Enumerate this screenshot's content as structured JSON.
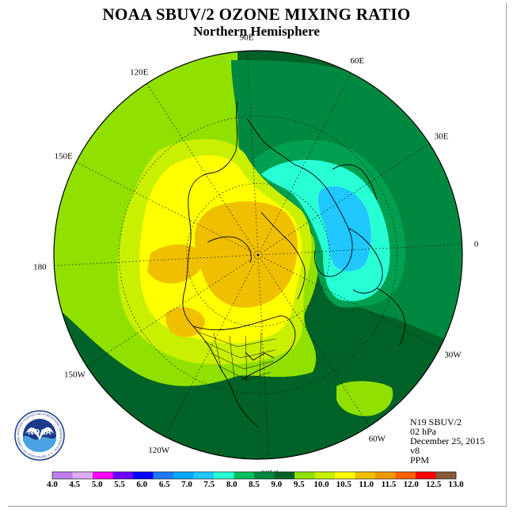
{
  "header": {
    "title": "NOAA SBUV/2 OZONE MIXING RATIO",
    "subtitle": "Northern Hemisphere"
  },
  "longitude_labels": [
    "90E",
    "60E",
    "30E",
    "0",
    "30W",
    "60W",
    "90W",
    "120W",
    "150W",
    "180",
    "150E",
    "120E"
  ],
  "info": {
    "satellite": "N19 SBUV/2",
    "level": "02 hPa",
    "date": "December 25, 2015",
    "version": "v8",
    "units": "PPM"
  },
  "logo": {
    "text": "NOAA",
    "ring_text": "NATIONAL OCEANIC AND ATMOSPHERIC ADMINISTRATION · U.S. DEPARTMENT OF COMMERCE"
  },
  "colorbar": {
    "labels": [
      "4.0",
      "4.5",
      "5.0",
      "5.5",
      "6.0",
      "6.5",
      "7.0",
      "7.5",
      "8.0",
      "8.5",
      "9.0",
      "9.5",
      "10.0",
      "10.5",
      "11.0",
      "11.5",
      "12.0",
      "12.5",
      "13.0"
    ],
    "colors": [
      "#bf7fef",
      "#ddaaf5",
      "#ff00ff",
      "#6b00ff",
      "#0000ff",
      "#1e7cff",
      "#00a8ff",
      "#20c8ff",
      "#28ffd4",
      "#00c060",
      "#008840",
      "#006228",
      "#90e000",
      "#c8f000",
      "#ffff00",
      "#f0c000",
      "#f09800",
      "#ff6000",
      "#ff0000",
      "#8b5a3a"
    ]
  },
  "map_colors": {
    "c_8_0": "#28ffd4",
    "c_7_5": "#20c8ff",
    "c_8_5": "#00a050",
    "c_9_0": "#008840",
    "c_9_5": "#006228",
    "c_10_0": "#90e000",
    "c_10_5": "#c8f000",
    "c_11_0": "#ffff00",
    "c_11_5": "#f0c000",
    "c_12_0": "#f09800"
  }
}
